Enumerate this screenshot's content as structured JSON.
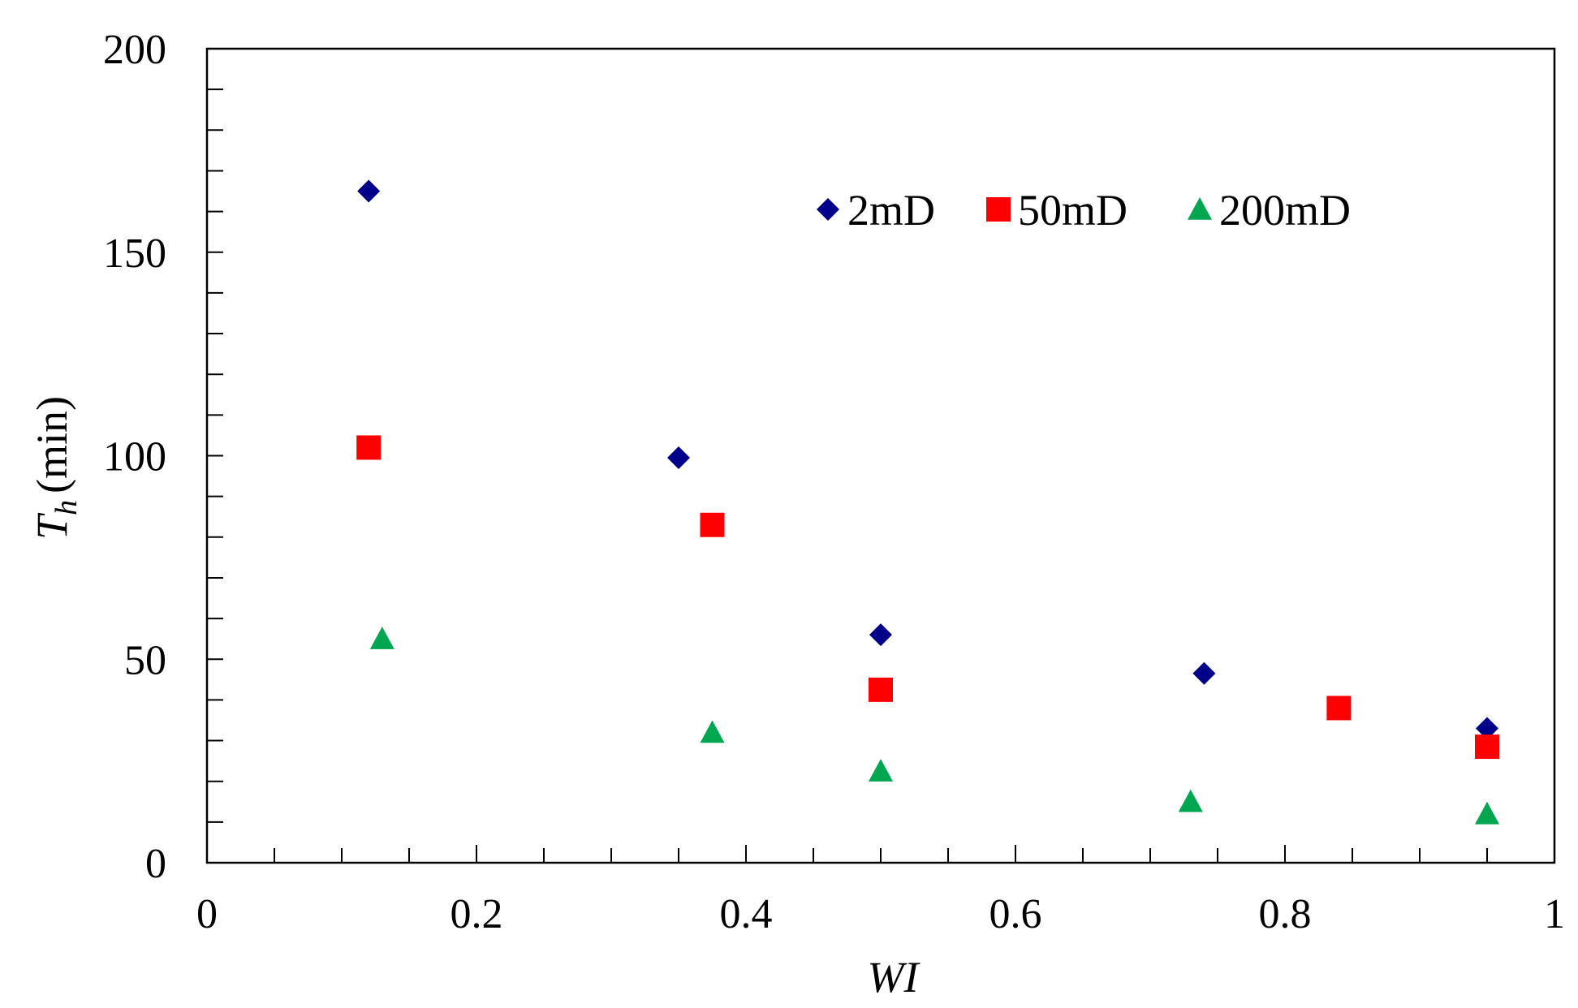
{
  "chart_data": {
    "type": "scatter",
    "title": "",
    "xlabel": "WI",
    "ylabel": {
      "symbol": "T",
      "subscript": "h",
      "unit": "(min)"
    },
    "xlim": [
      0,
      1
    ],
    "ylim": [
      0,
      200
    ],
    "xticks": [
      "0",
      "0.2",
      "0.4",
      "0.6",
      "0.8",
      "1"
    ],
    "yticks": [
      "0",
      "50",
      "100",
      "150",
      "200"
    ],
    "grid": false,
    "legend_position": "top-right",
    "series": [
      {
        "name": "2mD",
        "marker": "diamond",
        "color": "#00008B",
        "points": [
          {
            "x": 0.12,
            "y": 165
          },
          {
            "x": 0.35,
            "y": 99.5
          },
          {
            "x": 0.5,
            "y": 56
          },
          {
            "x": 0.74,
            "y": 46.5
          },
          {
            "x": 0.95,
            "y": 33
          }
        ]
      },
      {
        "name": "50mD",
        "marker": "square",
        "color": "#FF0000",
        "points": [
          {
            "x": 0.12,
            "y": 102
          },
          {
            "x": 0.375,
            "y": 83
          },
          {
            "x": 0.5,
            "y": 42.5
          },
          {
            "x": 0.84,
            "y": 38
          },
          {
            "x": 0.95,
            "y": 28.5
          }
        ]
      },
      {
        "name": "200mD",
        "marker": "triangle",
        "color": "#00A650",
        "points": [
          {
            "x": 0.13,
            "y": 55
          },
          {
            "x": 0.375,
            "y": 32
          },
          {
            "x": 0.5,
            "y": 22.5
          },
          {
            "x": 0.73,
            "y": 15
          },
          {
            "x": 0.95,
            "y": 12
          }
        ]
      }
    ]
  }
}
